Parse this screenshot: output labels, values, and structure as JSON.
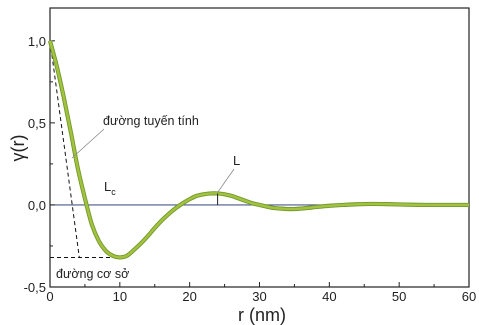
{
  "chart_data": {
    "type": "line",
    "xlabel": "r (nm)",
    "ylabel": "γ(r)",
    "xlim": [
      0,
      60
    ],
    "ylim": [
      -0.5,
      1.2
    ],
    "x_ticks": [
      0,
      10,
      20,
      30,
      40,
      50,
      60
    ],
    "x_tick_labels": [
      "0",
      "10",
      "20",
      "30",
      "40",
      "50",
      "60"
    ],
    "y_ticks": [
      -0.5,
      0.0,
      0.5,
      1.0
    ],
    "y_tick_labels": [
      "-0,5",
      "0,0",
      "0,5",
      "1,0"
    ],
    "grid": false,
    "zero_line": true,
    "colors": {
      "curve": "#8fb43a",
      "curve_edge": "#6f9a2c",
      "zero_line": "#4a5a8a",
      "axes": "#222222"
    },
    "series": [
      {
        "x": [
          0,
          1,
          2,
          3,
          4,
          5,
          6,
          7,
          8,
          9,
          10,
          11,
          12,
          13,
          14,
          15,
          16,
          17,
          18,
          19,
          20,
          21,
          22,
          23,
          24,
          25,
          26,
          27,
          28,
          29,
          30,
          31,
          32,
          33,
          34,
          35,
          36,
          37,
          38,
          39,
          40,
          42,
          44,
          46,
          48,
          50,
          52,
          54,
          56,
          58,
          60
        ],
        "y": [
          1.0,
          0.84,
          0.65,
          0.44,
          0.22,
          0.04,
          -0.12,
          -0.22,
          -0.28,
          -0.31,
          -0.32,
          -0.31,
          -0.275,
          -0.235,
          -0.19,
          -0.14,
          -0.095,
          -0.055,
          -0.02,
          0.01,
          0.035,
          0.055,
          0.065,
          0.07,
          0.07,
          0.065,
          0.055,
          0.04,
          0.025,
          0.01,
          0.0,
          -0.01,
          -0.018,
          -0.022,
          -0.025,
          -0.025,
          -0.022,
          -0.018,
          -0.013,
          -0.009,
          -0.005,
          0.0,
          0.004,
          0.006,
          0.005,
          0.003,
          0.001,
          0.0,
          0.0,
          0.0,
          0.0
        ]
      }
    ],
    "annotations": {
      "linear": {
        "label": "đường tuyến tính",
        "x1": 0,
        "y1": 1.0,
        "x2": 4.2,
        "y2": -0.32
      },
      "baseline": {
        "label": "đường cơ sở",
        "y": -0.32,
        "x_end": 10
      },
      "Lc": {
        "label": "L",
        "sub": "c",
        "x": 4.2
      },
      "L": {
        "label": "L",
        "x": 24,
        "y": 0.07
      }
    }
  }
}
